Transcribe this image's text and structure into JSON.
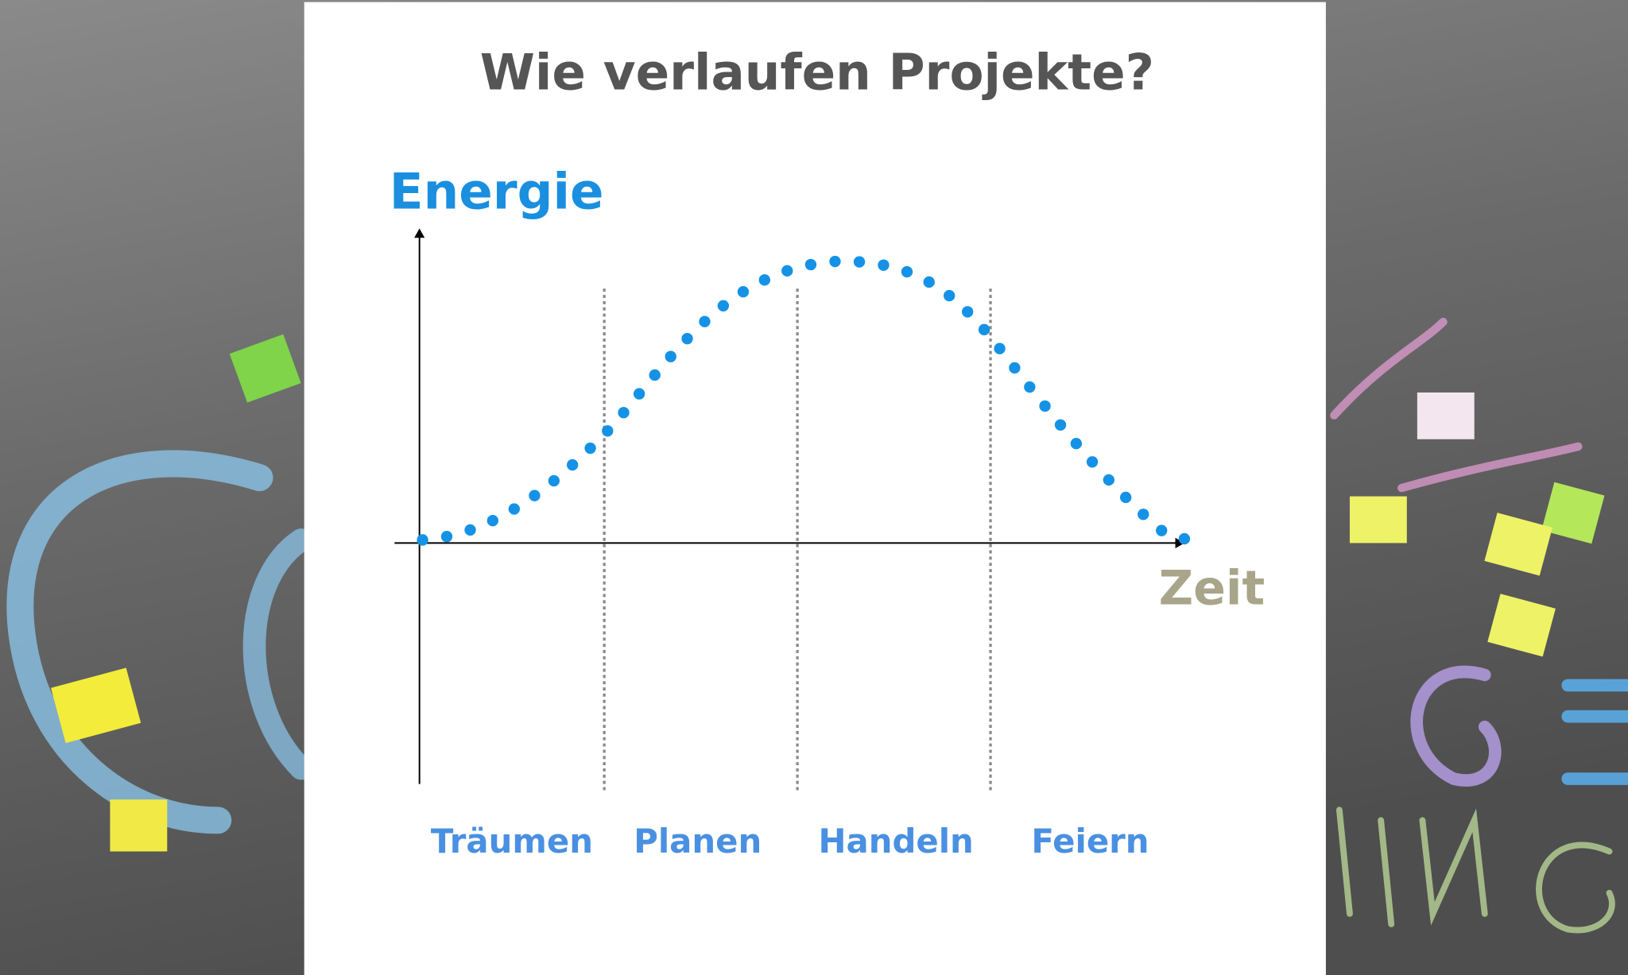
{
  "title": "Wie verlaufen Projekte?",
  "y_axis_label": "Energie",
  "x_axis_label": "Zeit",
  "phases": [
    "Träumen",
    "Planen",
    "Handeln",
    "Feiern"
  ]
}
